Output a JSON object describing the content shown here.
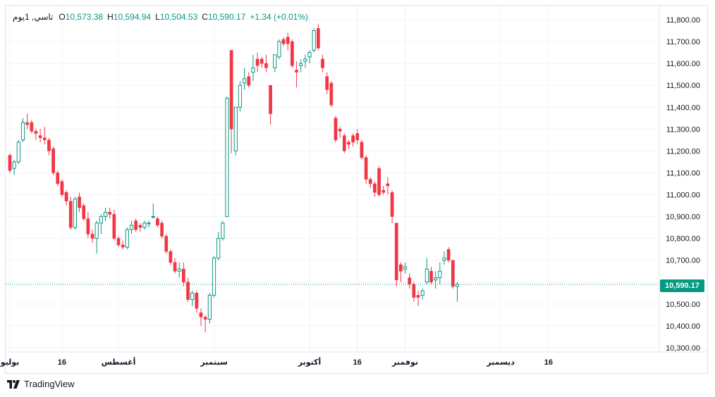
{
  "legend": {
    "symbol": "تاسي, 1يوم",
    "open_key": "O",
    "open": "10,573.38",
    "high_key": "H",
    "high": "10,594.94",
    "low_key": "L",
    "low": "10,504.53",
    "close_key": "C",
    "close": "10,590.17",
    "change": "+1.34 (+0.01%)"
  },
  "last_price_label": "10,590.17",
  "brand": {
    "name": "TradingView",
    "logo_icon": "tradingview-logo-icon"
  },
  "colors": {
    "up": "#089981",
    "down": "#f23645",
    "grid": "#f0f3fa",
    "text": "#131722"
  },
  "chart_data": {
    "type": "candlestick",
    "y_ticks": [
      "11,800.00",
      "11,700.00",
      "11,600.00",
      "11,500.00",
      "11,400.00",
      "11,300.00",
      "11,200.00",
      "11,100.00",
      "11,000.00",
      "10,900.00",
      "10,800.00",
      "10,700.00",
      "10,600.00",
      "10,500.00",
      "10,400.00",
      "10,300.00"
    ],
    "y_tick_values": [
      11800,
      11700,
      11600,
      11500,
      11400,
      11300,
      11200,
      11100,
      11000,
      10900,
      10800,
      10700,
      10600,
      10500,
      10400,
      10300
    ],
    "ylim": [
      10280,
      11830
    ],
    "x_ticks": [
      {
        "label": "يوليو",
        "index": 0
      },
      {
        "label": "16",
        "index": 12
      },
      {
        "label": "أغسطس",
        "index": 25
      },
      {
        "label": "سبتمبر",
        "index": 47
      },
      {
        "label": "أكتوبر",
        "index": 69
      },
      {
        "label": "16",
        "index": 80
      },
      {
        "label": "نوفمبر",
        "index": 91
      },
      {
        "label": "ديسمبر",
        "index": 113
      },
      {
        "label": "16",
        "index": 124
      }
    ],
    "last_price": 10590.17,
    "candles": [
      [
        11180,
        11190,
        11100,
        11110
      ],
      [
        11120,
        11160,
        11090,
        11150
      ],
      [
        11150,
        11250,
        11140,
        11240
      ],
      [
        11250,
        11350,
        11240,
        11330
      ],
      [
        11330,
        11370,
        11300,
        11320
      ],
      [
        11330,
        11340,
        11280,
        11290
      ],
      [
        11290,
        11300,
        11250,
        11280
      ],
      [
        11270,
        11300,
        11240,
        11260
      ],
      [
        11260,
        11310,
        11230,
        11250
      ],
      [
        11250,
        11260,
        11180,
        11200
      ],
      [
        11210,
        11220,
        11090,
        11100
      ],
      [
        11100,
        11110,
        11040,
        11050
      ],
      [
        11060,
        11070,
        10990,
        11000
      ],
      [
        11010,
        11020,
        10950,
        10970
      ],
      [
        10970,
        10990,
        10840,
        10850
      ],
      [
        10850,
        10990,
        10840,
        10980
      ],
      [
        10990,
        11010,
        10920,
        10940
      ],
      [
        10950,
        10960,
        10880,
        10890
      ],
      [
        10890,
        10920,
        10800,
        10820
      ],
      [
        10820,
        10840,
        10780,
        10800
      ],
      [
        10800,
        10880,
        10730,
        10870
      ],
      [
        10870,
        10910,
        10820,
        10900
      ],
      [
        10900,
        10940,
        10880,
        10920
      ],
      [
        10920,
        10940,
        10890,
        10910
      ],
      [
        10910,
        10930,
        10790,
        10800
      ],
      [
        10800,
        10810,
        10760,
        10770
      ],
      [
        10770,
        10790,
        10750,
        10760
      ],
      [
        10760,
        10850,
        10750,
        10840
      ],
      [
        10840,
        10880,
        10820,
        10860
      ],
      [
        10880,
        10890,
        10830,
        10840
      ],
      [
        10860,
        10870,
        10830,
        10850
      ],
      [
        10850,
        10880,
        10840,
        10870
      ],
      [
        10870,
        10880,
        10850,
        10870
      ],
      [
        10900,
        10960,
        10890,
        10900
      ],
      [
        10890,
        10900,
        10850,
        10860
      ],
      [
        10870,
        10880,
        10800,
        10810
      ],
      [
        10810,
        10820,
        10730,
        10740
      ],
      [
        10740,
        10750,
        10680,
        10690
      ],
      [
        10690,
        10710,
        10640,
        10650
      ],
      [
        10650,
        10690,
        10620,
        10660
      ],
      [
        10660,
        10690,
        10580,
        10600
      ],
      [
        10600,
        10620,
        10510,
        10520
      ],
      [
        10520,
        10560,
        10490,
        10550
      ],
      [
        10550,
        10560,
        10460,
        10480
      ],
      [
        10460,
        10480,
        10400,
        10440
      ],
      [
        10440,
        10450,
        10370,
        10430
      ],
      [
        10430,
        10550,
        10410,
        10540
      ],
      [
        10540,
        10720,
        10530,
        10710
      ],
      [
        10710,
        10830,
        10700,
        10800
      ],
      [
        10800,
        10880,
        10790,
        10870
      ],
      [
        10900,
        11450,
        10900,
        11440
      ],
      [
        11660,
        11660,
        11190,
        11300
      ],
      [
        11200,
        11400,
        11180,
        11400
      ],
      [
        11400,
        11520,
        11380,
        11500
      ],
      [
        11510,
        11580,
        11480,
        11530
      ],
      [
        11540,
        11560,
        11490,
        11500
      ],
      [
        11560,
        11640,
        11520,
        11580
      ],
      [
        11620,
        11650,
        11560,
        11590
      ],
      [
        11620,
        11630,
        11580,
        11600
      ],
      [
        11600,
        11640,
        11560,
        11580
      ],
      [
        11500,
        11500,
        11320,
        11370
      ],
      [
        11580,
        11640,
        11560,
        11640
      ],
      [
        11630,
        11710,
        11620,
        11700
      ],
      [
        11710,
        11720,
        11680,
        11690
      ],
      [
        11720,
        11740,
        11660,
        11690
      ],
      [
        11700,
        11710,
        11580,
        11590
      ],
      [
        11570,
        11610,
        11490,
        11560
      ],
      [
        11590,
        11620,
        11560,
        11600
      ],
      [
        11610,
        11640,
        11580,
        11620
      ],
      [
        11630,
        11660,
        11600,
        11650
      ],
      [
        11660,
        11760,
        11650,
        11750
      ],
      [
        11760,
        11780,
        11660,
        11670
      ],
      [
        11620,
        11640,
        11560,
        11580
      ],
      [
        11540,
        11560,
        11460,
        11480
      ],
      [
        11510,
        11520,
        11400,
        11410
      ],
      [
        11350,
        11360,
        11240,
        11250
      ],
      [
        11300,
        11310,
        11260,
        11290
      ],
      [
        11270,
        11280,
        11190,
        11200
      ],
      [
        11240,
        11250,
        11210,
        11230
      ],
      [
        11270,
        11280,
        11220,
        11240
      ],
      [
        11280,
        11300,
        11230,
        11250
      ],
      [
        11240,
        11250,
        11160,
        11170
      ],
      [
        11170,
        11180,
        11050,
        11070
      ],
      [
        11070,
        11080,
        11030,
        11050
      ],
      [
        11050,
        11060,
        10990,
        11010
      ],
      [
        11120,
        11130,
        10990,
        11000
      ],
      [
        11020,
        11040,
        11000,
        11010
      ],
      [
        11050,
        11080,
        11000,
        11040
      ],
      [
        11010,
        11020,
        10870,
        10900
      ],
      [
        10870,
        10870,
        10580,
        10610
      ],
      [
        10680,
        10690,
        10600,
        10650
      ],
      [
        10660,
        10690,
        10640,
        10670
      ],
      [
        10620,
        10640,
        10570,
        10590
      ],
      [
        10590,
        10600,
        10510,
        10530
      ],
      [
        10540,
        10560,
        10490,
        10530
      ],
      [
        10540,
        10570,
        10520,
        10560
      ],
      [
        10600,
        10710,
        10590,
        10660
      ],
      [
        10650,
        10670,
        10590,
        10600
      ],
      [
        10610,
        10650,
        10570,
        10620
      ],
      [
        10620,
        10690,
        10590,
        10650
      ],
      [
        10700,
        10740,
        10680,
        10710
      ],
      [
        10750,
        10760,
        10690,
        10700
      ],
      [
        10700,
        10700,
        10570,
        10580
      ],
      [
        10580,
        10600,
        10510,
        10590
      ]
    ]
  }
}
